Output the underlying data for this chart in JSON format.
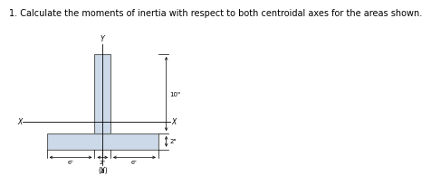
{
  "title": "1. Calculate the moments of inertia with respect to both centroidal axes for the areas shown.",
  "title_fontsize": 7.0,
  "shape_fill": "#ccd9e8",
  "shape_edge": "#666666",
  "background": "#ffffff",
  "fig_label": "(a)",
  "dim_labels": {
    "Y_top": "Y",
    "Y_bot": "Y",
    "X_left": "X",
    "X_right": "X",
    "height_label": "10\"",
    "base_height_label": "2\"",
    "left_seg": "6\"",
    "center_seg": "2\"",
    "right_seg": "6\""
  },
  "bw": 14,
  "bh": 2,
  "sw": 2,
  "sh": 10,
  "x_axis_y": 0,
  "scale": 1.0
}
